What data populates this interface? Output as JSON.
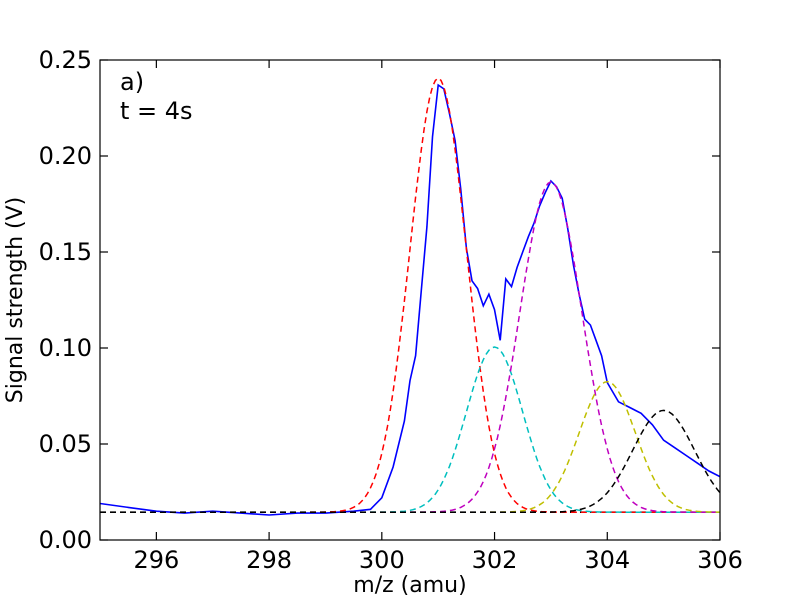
{
  "chart_data": {
    "type": "line",
    "title": "",
    "xlabel": "m/z (amu)",
    "ylabel": "Signal strength (V)",
    "xlim": [
      295,
      306
    ],
    "ylim": [
      0.0,
      0.25
    ],
    "x_ticks": [
      296,
      298,
      300,
      302,
      304,
      306
    ],
    "y_ticks": [
      0.0,
      0.05,
      0.1,
      0.15,
      0.2,
      0.25
    ],
    "x_tick_labels": [
      "296",
      "298",
      "300",
      "302",
      "304",
      "306"
    ],
    "y_tick_labels": [
      "0.00",
      "0.05",
      "0.10",
      "0.15",
      "0.20",
      "0.25"
    ],
    "grid": false,
    "legend": "none",
    "annotations": [
      "a)",
      "t = 4s"
    ],
    "baseline": {
      "value": 0.0145,
      "color": "#000000",
      "style": "dashed"
    },
    "series": [
      {
        "style": "solid",
        "color": "#0000ff",
        "x": [
          295.0,
          295.5,
          296.0,
          296.5,
          297.0,
          297.5,
          298.0,
          298.5,
          299.0,
          299.5,
          299.8,
          300.0,
          300.2,
          300.4,
          300.5,
          300.6,
          300.7,
          300.8,
          300.9,
          301.0,
          301.1,
          301.2,
          301.3,
          301.4,
          301.5,
          301.6,
          301.7,
          301.8,
          301.9,
          302.0,
          302.1,
          302.2,
          302.3,
          302.4,
          302.5,
          302.6,
          302.7,
          302.8,
          302.9,
          303.0,
          303.1,
          303.2,
          303.3,
          303.4,
          303.5,
          303.6,
          303.7,
          303.8,
          303.9,
          304.0,
          304.2,
          304.4,
          304.6,
          304.8,
          305.0,
          305.2,
          305.4,
          305.6,
          305.8,
          306.0
        ],
        "y": [
          0.019,
          0.017,
          0.015,
          0.014,
          0.015,
          0.014,
          0.013,
          0.014,
          0.014,
          0.015,
          0.016,
          0.022,
          0.038,
          0.062,
          0.083,
          0.096,
          0.13,
          0.163,
          0.21,
          0.237,
          0.235,
          0.222,
          0.208,
          0.183,
          0.152,
          0.135,
          0.131,
          0.122,
          0.128,
          0.12,
          0.104,
          0.136,
          0.132,
          0.142,
          0.15,
          0.158,
          0.165,
          0.174,
          0.181,
          0.187,
          0.184,
          0.178,
          0.162,
          0.143,
          0.128,
          0.115,
          0.112,
          0.104,
          0.096,
          0.082,
          0.072,
          0.069,
          0.066,
          0.06,
          0.052,
          0.048,
          0.044,
          0.04,
          0.036,
          0.033
        ]
      },
      {
        "style": "dashed",
        "color": "#ff0000",
        "model": "gaussian",
        "center": 301.0,
        "peak": 0.226,
        "sigma": 0.5
      },
      {
        "style": "dashed",
        "color": "#00bfbf",
        "model": "gaussian",
        "center": 302.0,
        "peak": 0.086,
        "sigma": 0.5
      },
      {
        "style": "dashed",
        "color": "#bf00bf",
        "model": "gaussian",
        "center": 303.0,
        "peak": 0.172,
        "sigma": 0.55
      },
      {
        "style": "dashed",
        "color": "#bfbf00",
        "model": "gaussian",
        "center": 304.0,
        "peak": 0.068,
        "sigma": 0.5
      },
      {
        "style": "dashed",
        "color": "#000000",
        "model": "gaussian",
        "center": 305.0,
        "peak": 0.053,
        "sigma": 0.55
      }
    ]
  }
}
